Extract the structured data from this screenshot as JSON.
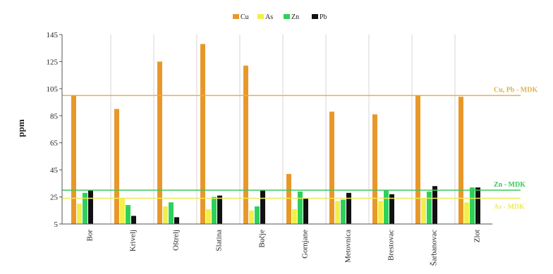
{
  "chart_data": {
    "type": "bar",
    "ylabel": "ppm",
    "ylim": [
      5,
      145
    ],
    "yticks": [
      5,
      25,
      45,
      65,
      85,
      105,
      125,
      145
    ],
    "grid": "vertical-only",
    "legend_position": "top-center",
    "categories": [
      "Bor",
      "Krivelj",
      "Oštrelj",
      "Slatina",
      "Bučje",
      "Gornjane",
      "Metovnica",
      "Brestovac",
      "Šarbanovac",
      "Zlot"
    ],
    "series": [
      {
        "name": "Cu",
        "color": "#e8982a",
        "values": [
          100,
          90,
          125,
          138,
          122,
          42,
          88,
          86,
          100,
          99
        ]
      },
      {
        "name": "As",
        "color": "#f2ee4a",
        "values": [
          20,
          24,
          18,
          16,
          15,
          16,
          22,
          22,
          24,
          21
        ]
      },
      {
        "name": "Zn",
        "color": "#2fd05a",
        "values": [
          28,
          19,
          21,
          25,
          18,
          29,
          23,
          30,
          29,
          32
        ]
      },
      {
        "name": "Pb",
        "color": "#111111",
        "values": [
          30,
          11,
          10,
          26,
          30,
          24,
          28,
          27,
          33,
          32
        ]
      }
    ],
    "reference_lines": [
      {
        "label": "Cu, Pb - MDK",
        "value": 100,
        "color": "#e3b04c"
      },
      {
        "label": "Zn - MDK",
        "value": 30,
        "color": "#3cc85a"
      },
      {
        "label": "As - MDK",
        "value": 24,
        "color": "#eeea58"
      }
    ]
  }
}
